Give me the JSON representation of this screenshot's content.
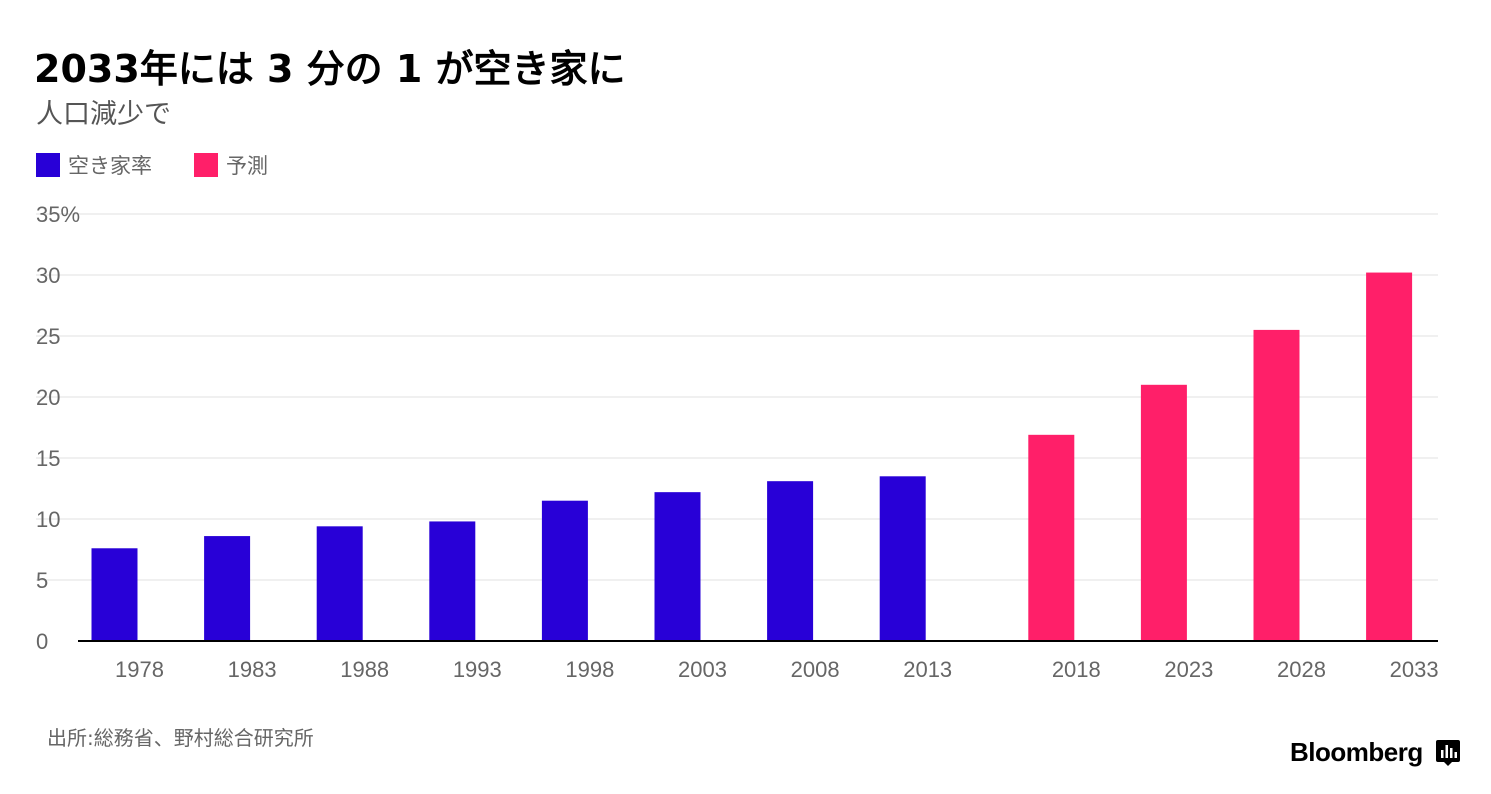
{
  "header": {
    "title": "2033年には 3 分の 1 が空き家に",
    "subtitle": "人口減少で"
  },
  "legend": [
    {
      "label": "空き家率",
      "color": "#2800d7"
    },
    {
      "label": "予測",
      "color": "#ff1f69"
    }
  ],
  "colors": {
    "actual": "#2800d7",
    "forecast": "#ff1f69",
    "grid": "#e1e1e1",
    "axis": "#000000",
    "tick_text": "#666666"
  },
  "footer": {
    "source": "出所:総務省、野村総合研究所",
    "brand": "Bloomberg",
    "brand_icon": "bloomberg-chart-icon"
  },
  "chart_data": {
    "type": "bar",
    "title": "2033年には 3 分の 1 が空き家に",
    "subtitle": "人口減少で",
    "categories": [
      "1978",
      "1983",
      "1988",
      "1993",
      "1998",
      "2003",
      "2008",
      "2013",
      "2018",
      "2023",
      "2028",
      "2033"
    ],
    "series": [
      {
        "name": "空き家率",
        "values": [
          7.6,
          8.6,
          9.4,
          9.8,
          11.5,
          12.2,
          13.1,
          13.5,
          null,
          null,
          null,
          null
        ]
      },
      {
        "name": "予測",
        "values": [
          null,
          null,
          null,
          null,
          null,
          null,
          null,
          null,
          16.9,
          21.0,
          25.5,
          30.2
        ]
      }
    ],
    "ylim": [
      0,
      35
    ],
    "yticks": [
      "0",
      "5",
      "10",
      "15",
      "20",
      "25",
      "30",
      "35%"
    ],
    "xlabel": "",
    "ylabel": "",
    "grid": true,
    "legend_position": "top-left"
  }
}
